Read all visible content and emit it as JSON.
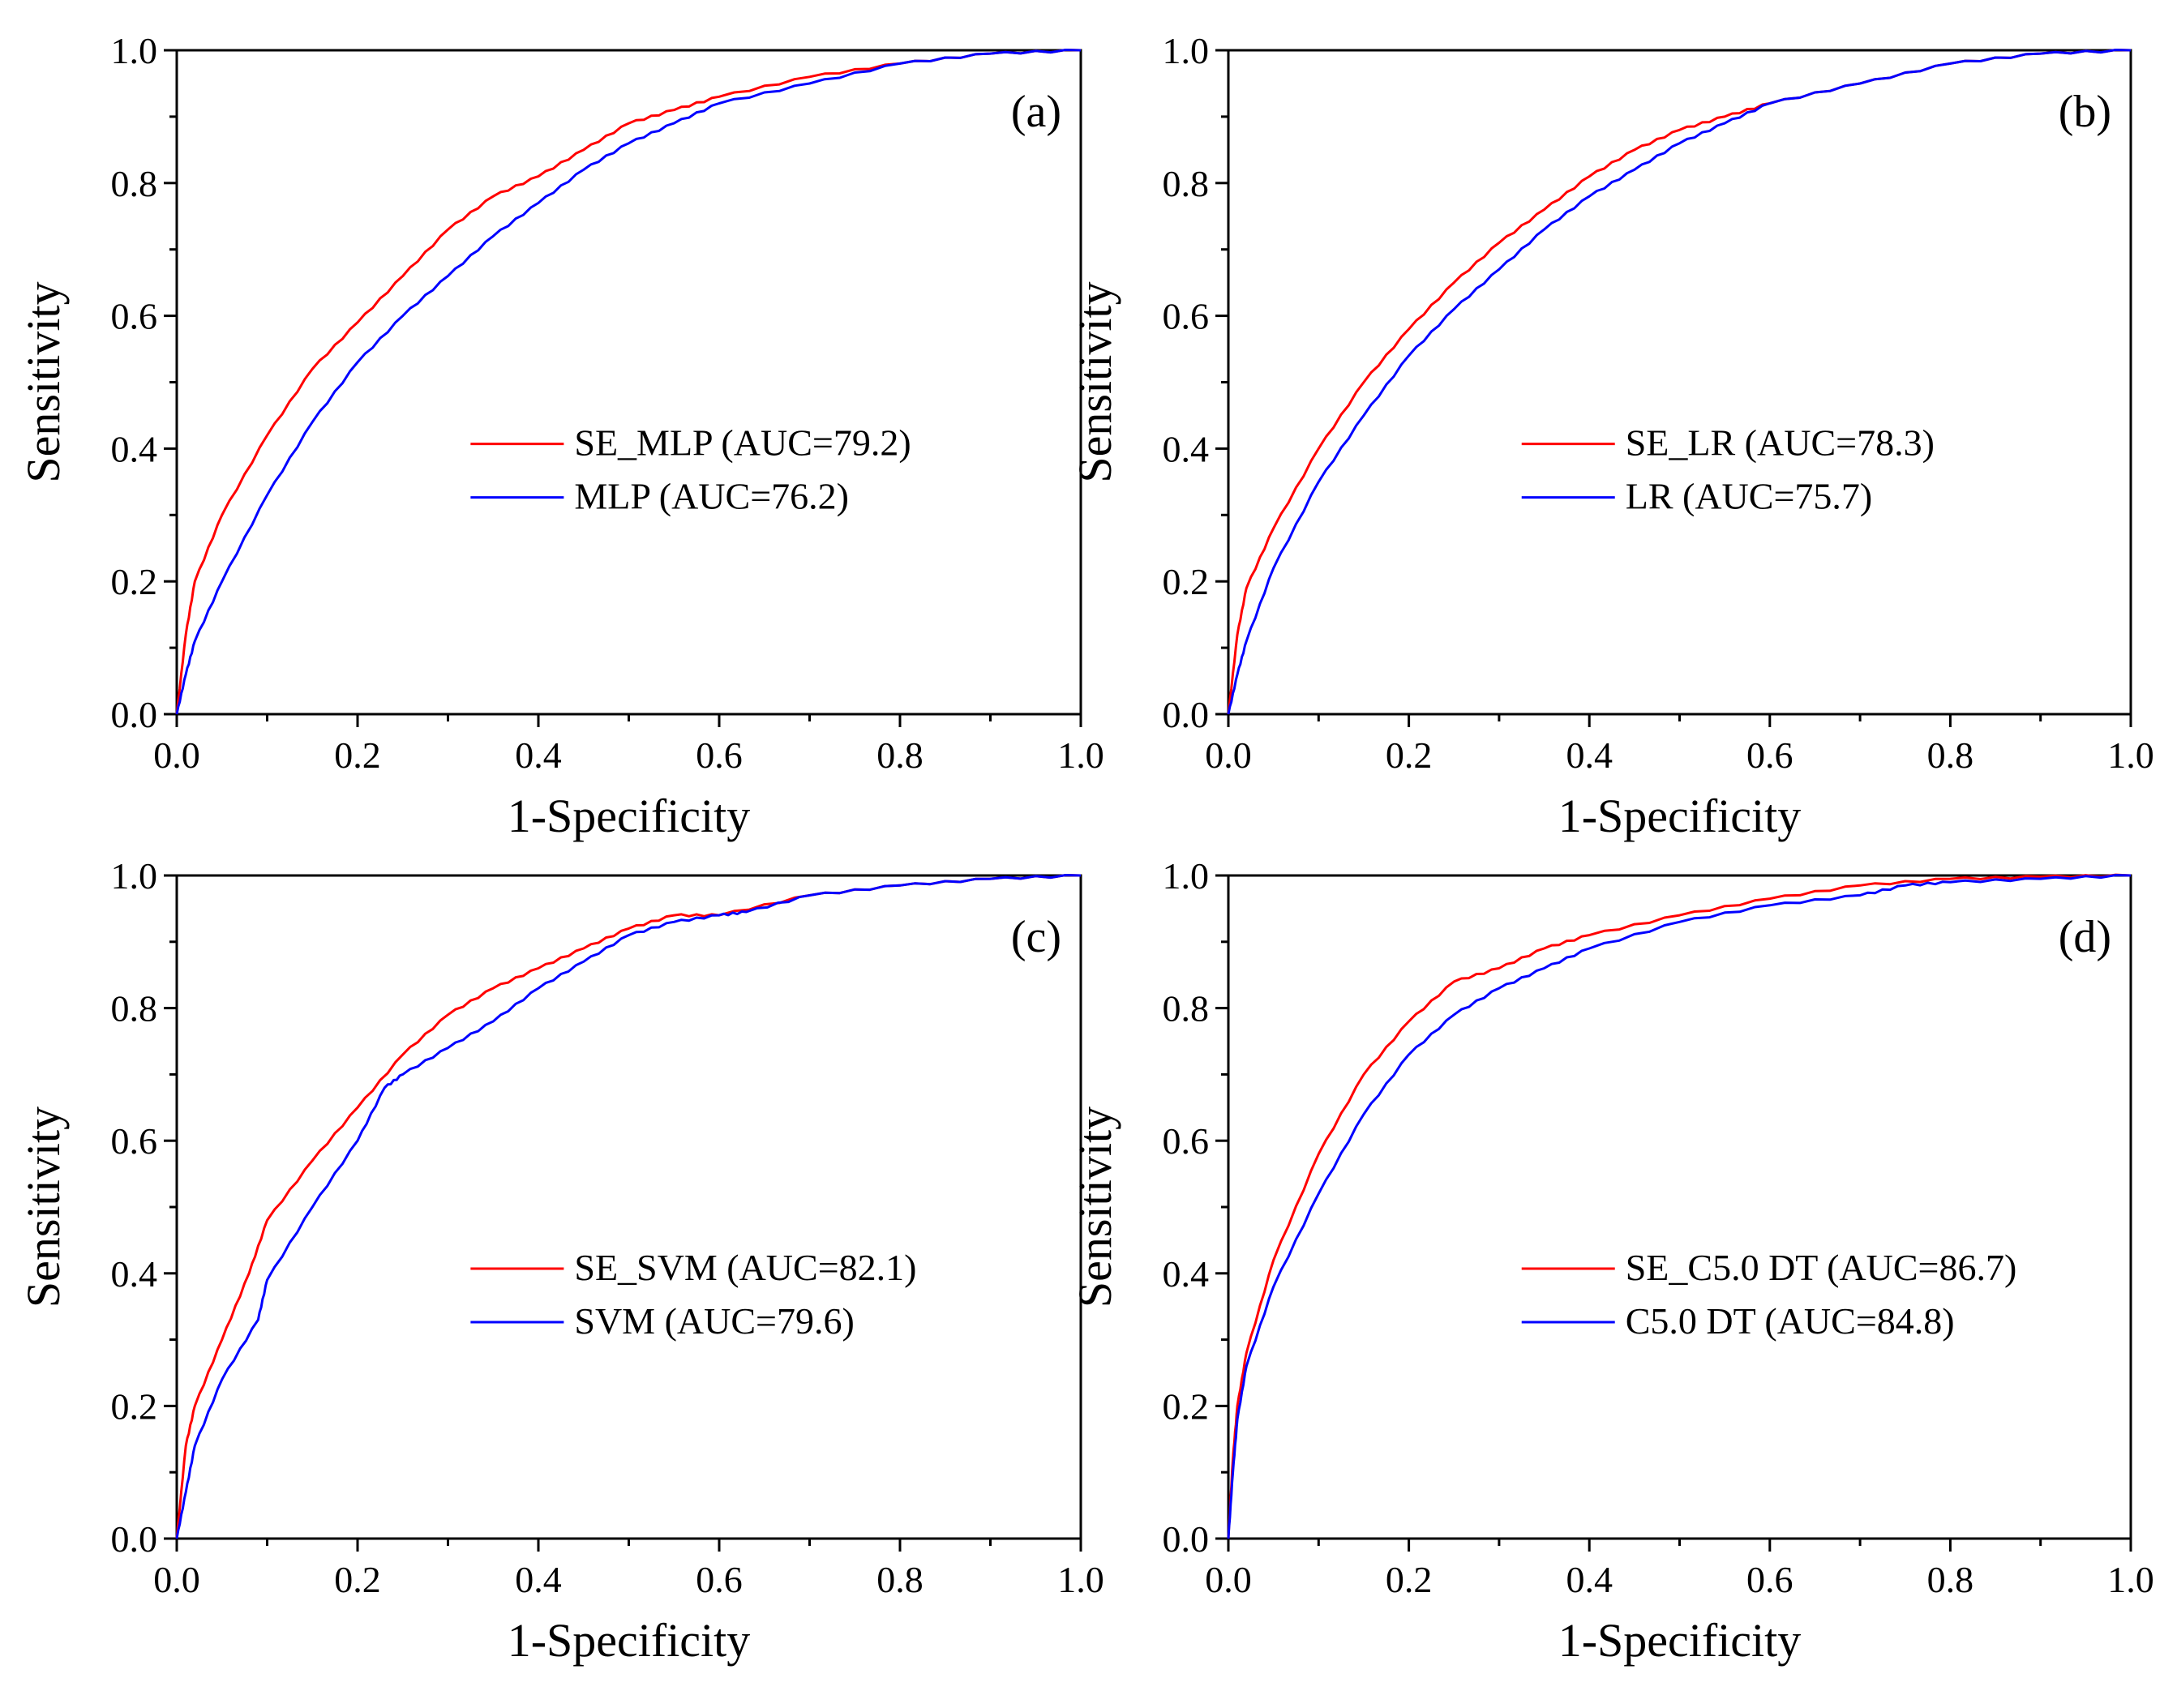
{
  "chart_data": [
    {
      "type": "line",
      "panel_label": "(a)",
      "xlabel": "1-Specificity",
      "ylabel": "Sensitivity",
      "xlim": [
        0,
        1
      ],
      "ylim": [
        0,
        1
      ],
      "xticks": [
        "0.0",
        "0.2",
        "0.4",
        "0.6",
        "0.8",
        "1.0"
      ],
      "yticks": [
        "0.0",
        "0.2",
        "0.4",
        "0.6",
        "0.8",
        "1.0"
      ],
      "legend_position": "center-right",
      "series": [
        {
          "name": "SE_MLP (AUC=79.2)",
          "color": "#ff0000",
          "x": [
            0,
            0.01,
            0.02,
            0.05,
            0.1,
            0.15,
            0.2,
            0.25,
            0.3,
            0.35,
            0.4,
            0.45,
            0.5,
            0.55,
            0.6,
            0.7,
            0.8,
            0.9,
            1.0
          ],
          "y": [
            0,
            0.12,
            0.2,
            0.3,
            0.42,
            0.52,
            0.59,
            0.66,
            0.73,
            0.78,
            0.81,
            0.85,
            0.89,
            0.91,
            0.93,
            0.96,
            0.98,
            0.995,
            1.0
          ]
        },
        {
          "name": "MLP (AUC=76.2)",
          "color": "#0000ff",
          "x": [
            0,
            0.01,
            0.02,
            0.05,
            0.1,
            0.15,
            0.2,
            0.25,
            0.3,
            0.35,
            0.4,
            0.45,
            0.5,
            0.55,
            0.6,
            0.7,
            0.8,
            0.9,
            1.0
          ],
          "y": [
            0,
            0.06,
            0.11,
            0.2,
            0.33,
            0.44,
            0.53,
            0.6,
            0.66,
            0.72,
            0.77,
            0.82,
            0.86,
            0.89,
            0.92,
            0.95,
            0.98,
            0.995,
            1.0
          ]
        }
      ]
    },
    {
      "type": "line",
      "panel_label": "(b)",
      "xlabel": "1-Specificity",
      "ylabel": "Sensitivity",
      "xlim": [
        0,
        1
      ],
      "ylim": [
        0,
        1
      ],
      "xticks": [
        "0.0",
        "0.2",
        "0.4",
        "0.6",
        "0.8",
        "1.0"
      ],
      "yticks": [
        "0.0",
        "0.2",
        "0.4",
        "0.6",
        "0.8",
        "1.0"
      ],
      "legend_position": "center-right",
      "series": [
        {
          "name": "SE_LR (AUC=78.3)",
          "color": "#ff0000",
          "x": [
            0,
            0.01,
            0.02,
            0.05,
            0.1,
            0.15,
            0.2,
            0.25,
            0.3,
            0.35,
            0.4,
            0.45,
            0.5,
            0.55,
            0.6,
            0.7,
            0.8,
            0.9,
            1.0
          ],
          "y": [
            0,
            0.12,
            0.19,
            0.28,
            0.4,
            0.5,
            0.58,
            0.65,
            0.71,
            0.76,
            0.81,
            0.85,
            0.88,
            0.9,
            0.92,
            0.95,
            0.98,
            0.995,
            1.0
          ]
        },
        {
          "name": "LR (AUC=75.7)",
          "color": "#0000ff",
          "x": [
            0,
            0.01,
            0.02,
            0.05,
            0.1,
            0.15,
            0.2,
            0.25,
            0.3,
            0.35,
            0.4,
            0.45,
            0.5,
            0.55,
            0.6,
            0.7,
            0.8,
            0.9,
            1.0
          ],
          "y": [
            0,
            0.06,
            0.11,
            0.22,
            0.35,
            0.45,
            0.54,
            0.61,
            0.67,
            0.73,
            0.78,
            0.82,
            0.86,
            0.89,
            0.92,
            0.95,
            0.98,
            0.995,
            1.0
          ]
        }
      ]
    },
    {
      "type": "line",
      "panel_label": "(c)",
      "xlabel": "1-Specificity",
      "ylabel": "Sensitivity",
      "xlim": [
        0,
        1
      ],
      "ylim": [
        0,
        1
      ],
      "xticks": [
        "0.0",
        "0.2",
        "0.4",
        "0.6",
        "0.8",
        "1.0"
      ],
      "yticks": [
        "0.0",
        "0.2",
        "0.4",
        "0.6",
        "0.8",
        "1.0"
      ],
      "legend_position": "center-right",
      "series": [
        {
          "name": "SE_SVM (AUC=82.1)",
          "color": "#ff0000",
          "x": [
            0,
            0.01,
            0.02,
            0.05,
            0.08,
            0.1,
            0.15,
            0.2,
            0.25,
            0.3,
            0.35,
            0.4,
            0.45,
            0.5,
            0.55,
            0.6,
            0.7,
            0.8,
            0.9,
            1.0
          ],
          "y": [
            0,
            0.14,
            0.2,
            0.3,
            0.4,
            0.48,
            0.57,
            0.65,
            0.73,
            0.79,
            0.83,
            0.86,
            0.89,
            0.92,
            0.94,
            0.94,
            0.97,
            0.985,
            0.995,
            1.0
          ]
        },
        {
          "name": "SVM (AUC=79.6)",
          "color": "#0000ff",
          "x": [
            0,
            0.01,
            0.02,
            0.05,
            0.09,
            0.1,
            0.15,
            0.2,
            0.23,
            0.25,
            0.3,
            0.35,
            0.4,
            0.45,
            0.5,
            0.55,
            0.6,
            0.63,
            0.7,
            0.8,
            0.9,
            1.0
          ],
          "y": [
            0,
            0.07,
            0.14,
            0.24,
            0.33,
            0.39,
            0.5,
            0.6,
            0.68,
            0.7,
            0.74,
            0.78,
            0.83,
            0.87,
            0.91,
            0.93,
            0.94,
            0.945,
            0.97,
            0.985,
            0.995,
            1.0
          ]
        }
      ]
    },
    {
      "type": "line",
      "panel_label": "(d)",
      "xlabel": "1-Specificity",
      "ylabel": "Sensitivity",
      "xlim": [
        0,
        1
      ],
      "ylim": [
        0,
        1
      ],
      "xticks": [
        "0.0",
        "0.2",
        "0.4",
        "0.6",
        "0.8",
        "1.0"
      ],
      "yticks": [
        "0.0",
        "0.2",
        "0.4",
        "0.6",
        "0.8",
        "1.0"
      ],
      "legend_position": "center-right",
      "series": [
        {
          "name": "SE_C5.0 DT (AUC=86.7)",
          "color": "#ff0000",
          "x": [
            0,
            0.005,
            0.01,
            0.02,
            0.05,
            0.1,
            0.15,
            0.2,
            0.25,
            0.3,
            0.35,
            0.4,
            0.5,
            0.6,
            0.7,
            0.8,
            0.9,
            1.0
          ],
          "y": [
            0,
            0.12,
            0.2,
            0.28,
            0.42,
            0.58,
            0.7,
            0.78,
            0.84,
            0.86,
            0.89,
            0.91,
            0.94,
            0.965,
            0.985,
            0.995,
            0.998,
            1.0
          ]
        },
        {
          "name": "C5.0 DT (AUC=84.8)",
          "color": "#0000ff",
          "x": [
            0,
            0.005,
            0.01,
            0.02,
            0.05,
            0.1,
            0.15,
            0.2,
            0.25,
            0.3,
            0.35,
            0.4,
            0.5,
            0.6,
            0.7,
            0.75,
            0.8,
            0.9,
            1.0
          ],
          "y": [
            0,
            0.1,
            0.18,
            0.26,
            0.38,
            0.52,
            0.64,
            0.73,
            0.79,
            0.83,
            0.86,
            0.89,
            0.93,
            0.955,
            0.97,
            0.985,
            0.99,
            0.995,
            1.0
          ]
        }
      ]
    }
  ]
}
